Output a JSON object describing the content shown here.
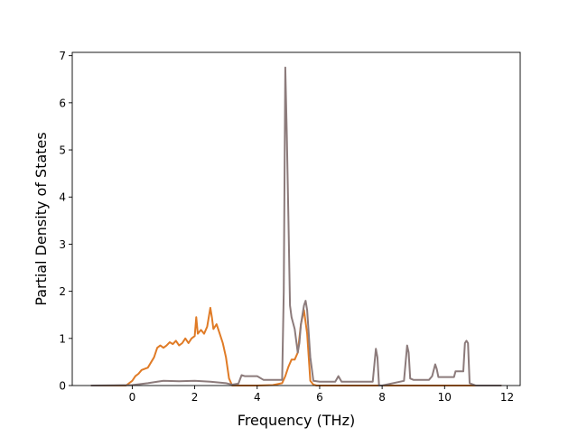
{
  "chart_data": {
    "type": "line",
    "title": "",
    "xlabel": "Frequency (THz)",
    "ylabel": "Partial Density of States",
    "xlim": [
      -1.92,
      12.42
    ],
    "ylim": [
      0,
      7.07
    ],
    "xticks": [
      0,
      2,
      4,
      6,
      8,
      10,
      12
    ],
    "yticks": [
      0,
      1,
      2,
      3,
      4,
      5,
      6,
      7
    ],
    "grid": false,
    "legend": "none",
    "series": [
      {
        "color": "#e07b26",
        "x": [
          -1.3,
          -0.2,
          0.0,
          0.1,
          0.2,
          0.3,
          0.5,
          0.7,
          0.8,
          0.9,
          1.0,
          1.1,
          1.2,
          1.3,
          1.4,
          1.5,
          1.6,
          1.7,
          1.8,
          1.9,
          2.0,
          2.05,
          2.1,
          2.2,
          2.3,
          2.4,
          2.5,
          2.55,
          2.6,
          2.7,
          2.8,
          2.9,
          3.0,
          3.1,
          3.2,
          3.5,
          4.0,
          4.5,
          4.8,
          4.9,
          5.0,
          5.1,
          5.2,
          5.3,
          5.4,
          5.5,
          5.6,
          5.7,
          5.8,
          5.9,
          6.5,
          7.0,
          7.8,
          8.0,
          8.8,
          9.0,
          10.0,
          10.6,
          10.8,
          11.0,
          11.8
        ],
        "y": [
          0,
          0,
          0.1,
          0.2,
          0.25,
          0.33,
          0.38,
          0.6,
          0.8,
          0.85,
          0.8,
          0.85,
          0.92,
          0.88,
          0.95,
          0.85,
          0.9,
          1.0,
          0.9,
          1.0,
          1.05,
          1.45,
          1.1,
          1.18,
          1.1,
          1.25,
          1.65,
          1.45,
          1.2,
          1.3,
          1.1,
          0.9,
          0.6,
          0.15,
          0.0,
          0.0,
          0.0,
          0.01,
          0.05,
          0.2,
          0.4,
          0.55,
          0.55,
          0.7,
          1.3,
          1.6,
          1.1,
          0.1,
          0.02,
          0.0,
          0.0,
          0.0,
          0.0,
          0.0,
          0.0,
          0.0,
          0.0,
          0.0,
          0.0,
          0.0,
          0.0
        ]
      },
      {
        "color": "#8c7b7b",
        "x": [
          -1.3,
          0.0,
          0.5,
          0.8,
          1.0,
          1.5,
          2.0,
          2.5,
          3.0,
          3.2,
          3.4,
          3.5,
          3.6,
          4.0,
          4.2,
          4.7,
          4.8,
          4.85,
          4.9,
          4.95,
          5.0,
          5.05,
          5.1,
          5.2,
          5.3,
          5.35,
          5.4,
          5.5,
          5.55,
          5.6,
          5.7,
          5.8,
          6.0,
          6.5,
          6.6,
          6.7,
          7.0,
          7.7,
          7.8,
          7.85,
          7.9,
          8.0,
          8.7,
          8.8,
          8.85,
          8.9,
          9.0,
          9.5,
          9.6,
          9.7,
          9.75,
          9.8,
          10.0,
          10.3,
          10.35,
          10.5,
          10.6,
          10.65,
          10.7,
          10.75,
          10.8,
          11.0,
          11.8
        ],
        "y": [
          0,
          0.01,
          0.05,
          0.08,
          0.1,
          0.09,
          0.1,
          0.08,
          0.05,
          0.02,
          0.04,
          0.22,
          0.2,
          0.2,
          0.12,
          0.12,
          0.12,
          2.0,
          6.75,
          5.3,
          3.5,
          1.7,
          1.45,
          1.2,
          0.7,
          0.9,
          1.3,
          1.7,
          1.8,
          1.6,
          0.6,
          0.1,
          0.08,
          0.08,
          0.2,
          0.08,
          0.08,
          0.08,
          0.78,
          0.6,
          0.0,
          0.0,
          0.1,
          0.85,
          0.7,
          0.15,
          0.12,
          0.12,
          0.2,
          0.45,
          0.35,
          0.18,
          0.18,
          0.18,
          0.3,
          0.3,
          0.3,
          0.9,
          0.95,
          0.9,
          0.05,
          0.0,
          0.0
        ]
      }
    ]
  }
}
